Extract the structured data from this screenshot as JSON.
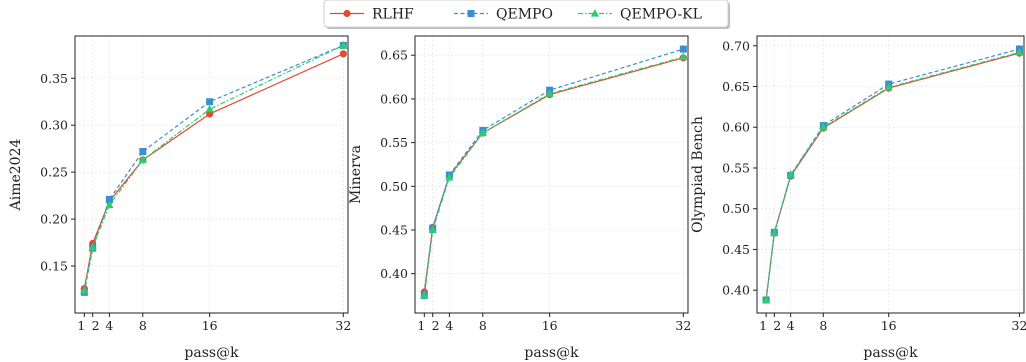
{
  "legend": {
    "placement": "top-center",
    "entries": [
      {
        "name": "RLHF",
        "color": "#e24a33",
        "marker": "circle",
        "dash": "solid"
      },
      {
        "name": "QEMPO",
        "color": "#3a8fd0",
        "marker": "square",
        "dash": "dashed"
      },
      {
        "name": "QEMPO-KL",
        "color": "#2ecc71",
        "marker": "triangle",
        "dash": "dashdot"
      }
    ]
  },
  "chart_data": [
    {
      "type": "line",
      "xlabel": "pass@k",
      "ylabel": "Aime2024",
      "x": [
        1,
        2,
        4,
        8,
        16,
        32
      ],
      "xticks": [
        1,
        2,
        4,
        8,
        16,
        32
      ],
      "xtick_labels": [
        "1",
        "2",
        "4",
        "8",
        "16",
        "32"
      ],
      "ylim": [
        0.1,
        0.395
      ],
      "yticks": [
        0.15,
        0.2,
        0.25,
        0.3,
        0.35
      ],
      "ytick_labels": [
        "0.15",
        "0.20",
        "0.25",
        "0.30",
        "0.35"
      ],
      "grid": true,
      "series": [
        {
          "name": "RLHF",
          "values": [
            0.126,
            0.174,
            0.219,
            0.263,
            0.312,
            0.376
          ]
        },
        {
          "name": "QEMPO",
          "values": [
            0.122,
            0.169,
            0.221,
            0.272,
            0.325,
            0.385
          ]
        },
        {
          "name": "QEMPO-KL",
          "values": [
            0.124,
            0.17,
            0.215,
            0.263,
            0.317,
            0.385
          ]
        }
      ]
    },
    {
      "type": "line",
      "xlabel": "pass@k",
      "ylabel": "Minerva",
      "x": [
        1,
        2,
        4,
        8,
        16,
        32
      ],
      "xticks": [
        1,
        2,
        4,
        8,
        16,
        32
      ],
      "xtick_labels": [
        "1",
        "2",
        "4",
        "8",
        "16",
        "32"
      ],
      "ylim": [
        0.355,
        0.672
      ],
      "yticks": [
        0.4,
        0.45,
        0.5,
        0.55,
        0.6,
        0.65
      ],
      "ytick_labels": [
        "0.40",
        "0.45",
        "0.50",
        "0.55",
        "0.60",
        "0.65"
      ],
      "grid": true,
      "series": [
        {
          "name": "RLHF",
          "values": [
            0.379,
            0.453,
            0.512,
            0.561,
            0.605,
            0.647
          ]
        },
        {
          "name": "QEMPO",
          "values": [
            0.375,
            0.452,
            0.513,
            0.564,
            0.61,
            0.657
          ]
        },
        {
          "name": "QEMPO-KL",
          "values": [
            0.375,
            0.45,
            0.51,
            0.561,
            0.606,
            0.648
          ]
        }
      ]
    },
    {
      "type": "line",
      "xlabel": "pass@k",
      "ylabel": "Olympiad Bench",
      "x": [
        1,
        2,
        4,
        8,
        16,
        32
      ],
      "xticks": [
        1,
        2,
        4,
        8,
        16,
        32
      ],
      "xtick_labels": [
        "1",
        "2",
        "4",
        "8",
        "16",
        "32"
      ],
      "ylim": [
        0.372,
        0.712
      ],
      "yticks": [
        0.4,
        0.45,
        0.5,
        0.55,
        0.6,
        0.65,
        0.7
      ],
      "ytick_labels": [
        "0.40",
        "0.45",
        "0.50",
        "0.55",
        "0.60",
        "0.65",
        "0.70"
      ],
      "grid": true,
      "series": [
        {
          "name": "RLHF",
          "values": [
            0.388,
            0.47,
            0.54,
            0.599,
            0.648,
            0.691
          ]
        },
        {
          "name": "QEMPO",
          "values": [
            0.388,
            0.471,
            0.541,
            0.602,
            0.653,
            0.696
          ]
        },
        {
          "name": "QEMPO-KL",
          "values": [
            0.388,
            0.47,
            0.542,
            0.6,
            0.649,
            0.692
          ]
        }
      ]
    }
  ]
}
